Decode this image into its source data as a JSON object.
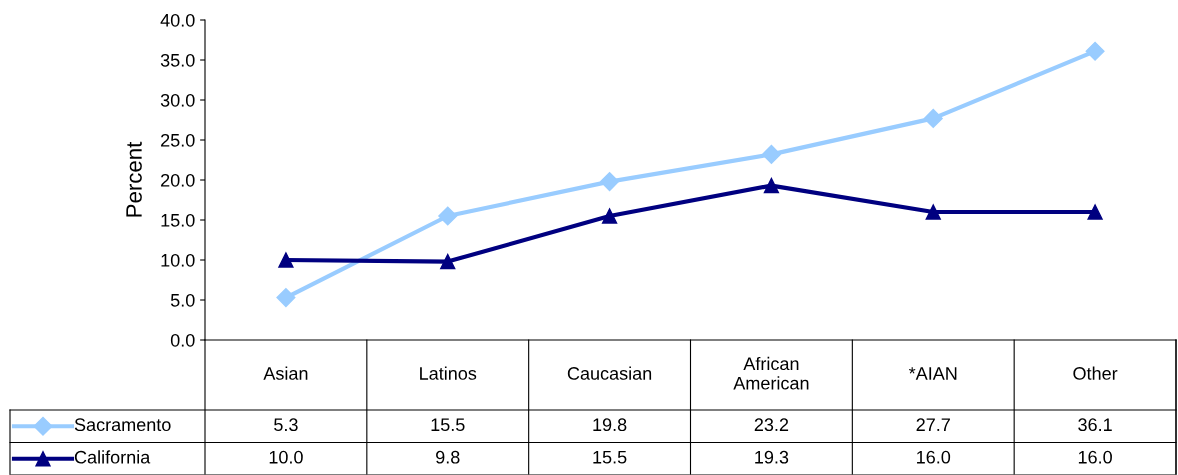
{
  "chart_data": {
    "type": "line",
    "ylabel": "Percent",
    "categories": [
      "Asian",
      "Latinos",
      "Caucasian",
      "African American",
      "*AIAN",
      "Other"
    ],
    "series": [
      {
        "name": "Sacramento",
        "color": "#99ccff",
        "marker": "diamond",
        "values": [
          5.3,
          15.5,
          19.8,
          23.2,
          27.7,
          36.1
        ],
        "value_labels": [
          "5.3",
          "15.5",
          "19.8",
          "23.2",
          "27.7",
          "36.1"
        ]
      },
      {
        "name": "California",
        "color": "#000080",
        "marker": "triangle",
        "values": [
          10.0,
          9.8,
          15.5,
          19.3,
          16.0,
          16.0
        ],
        "value_labels": [
          "10.0",
          "9.8",
          "15.5",
          "19.3",
          "16.0",
          "16.0"
        ]
      }
    ],
    "ylim": [
      0,
      40
    ],
    "yticks": [
      {
        "value": 0,
        "label": "0.0"
      },
      {
        "value": 5,
        "label": "5.0"
      },
      {
        "value": 10,
        "label": "10.0"
      },
      {
        "value": 15,
        "label": "15.0"
      },
      {
        "value": 20,
        "label": "20.0"
      },
      {
        "value": 25,
        "label": "25.0"
      },
      {
        "value": 30,
        "label": "30.0"
      },
      {
        "value": 35,
        "label": "35.0"
      },
      {
        "value": 40,
        "label": "40.0"
      }
    ],
    "grid": false,
    "legend": "bottom"
  }
}
